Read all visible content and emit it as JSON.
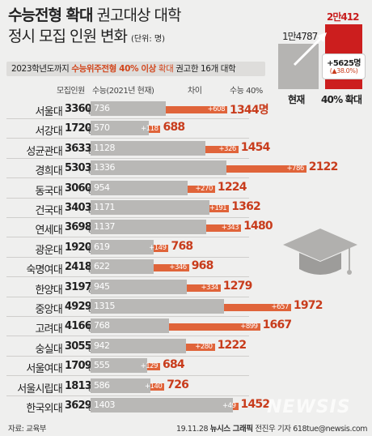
{
  "title": {
    "line1_bold": "수능전형 확대",
    "line1_light": "권고대상 대학",
    "line2": "정시 모집 인원 변화",
    "unit": "(단위: 명)"
  },
  "banner": {
    "part1": "2023학년도까지 ",
    "highlight": "수능위주전형 40% 이상",
    "part2": " 확대",
    "part3": " 권고한 16개 대학"
  },
  "headers": {
    "recruit": "모집인원",
    "current": "수능(2021년 현재)",
    "diff": "차이",
    "target": "수능 40%"
  },
  "unit_suffix": "명",
  "inset": {
    "current_value": "1만4787",
    "target_value": "2만412",
    "current_label": "현재",
    "target_label": "40% 확대",
    "increase": "+5625명",
    "increase_pct": "(▲38.0%)",
    "colors": {
      "current": "#b5b4b2",
      "target": "#cc1e1e"
    }
  },
  "chart_data": {
    "type": "bar",
    "title": "정시 모집 인원 변화",
    "series": [
      {
        "name": "수능(2021년 현재)",
        "values": [
          736,
          570,
          1128,
          1336,
          954,
          1171,
          1137,
          619,
          622,
          945,
          1315,
          768,
          942,
          555,
          586,
          1403
        ]
      },
      {
        "name": "수능 40%",
        "values": [
          1344,
          688,
          1454,
          2122,
          1224,
          1362,
          1480,
          768,
          968,
          1279,
          1972,
          1667,
          1222,
          684,
          726,
          1452
        ]
      }
    ],
    "rows": [
      {
        "univ": "서울대",
        "recruit": 3360,
        "current": 736,
        "diff": "+608",
        "target": 1344,
        "target_label": "1344명"
      },
      {
        "univ": "서강대",
        "recruit": 1720,
        "current": 570,
        "diff": "+118",
        "target": 688,
        "target_label": "688"
      },
      {
        "univ": "성균관대",
        "recruit": 3633,
        "current": 1128,
        "diff": "+326",
        "target": 1454,
        "target_label": "1454"
      },
      {
        "univ": "경희대",
        "recruit": 5303,
        "current": 1336,
        "diff": "+786",
        "target": 2122,
        "target_label": "2122"
      },
      {
        "univ": "동국대",
        "recruit": 3060,
        "current": 954,
        "diff": "+270",
        "target": 1224,
        "target_label": "1224"
      },
      {
        "univ": "건국대",
        "recruit": 3403,
        "current": 1171,
        "diff": "+191",
        "target": 1362,
        "target_label": "1362"
      },
      {
        "univ": "연세대",
        "recruit": 3698,
        "current": 1137,
        "diff": "+343",
        "target": 1480,
        "target_label": "1480"
      },
      {
        "univ": "광운대",
        "recruit": 1920,
        "current": 619,
        "diff": "+149",
        "target": 768,
        "target_label": "768"
      },
      {
        "univ": "숙명여대",
        "recruit": 2418,
        "current": 622,
        "diff": "+346",
        "target": 968,
        "target_label": "968"
      },
      {
        "univ": "한양대",
        "recruit": 3197,
        "current": 945,
        "diff": "+334",
        "target": 1279,
        "target_label": "1279"
      },
      {
        "univ": "중앙대",
        "recruit": 4929,
        "current": 1315,
        "diff": "+657",
        "target": 1972,
        "target_label": "1972"
      },
      {
        "univ": "고려대",
        "recruit": 4166,
        "current": 768,
        "diff": "+899",
        "target": 1667,
        "target_label": "1667"
      },
      {
        "univ": "숭실대",
        "recruit": 3055,
        "current": 942,
        "diff": "+280",
        "target": 1222,
        "target_label": "1222"
      },
      {
        "univ": "서울여대",
        "recruit": 1709,
        "current": 555,
        "diff": "+129",
        "target": 684,
        "target_label": "684"
      },
      {
        "univ": "서울시립대",
        "recruit": 1813,
        "current": 586,
        "diff": "+140",
        "target": 726,
        "target_label": "726"
      },
      {
        "univ": "한국외대",
        "recruit": 3629,
        "current": 1403,
        "diff": "+49",
        "target": 1452,
        "target_label": "1452"
      }
    ],
    "colors": {
      "current_bar": "#b9b8b6",
      "increase_bar": "#e0643a",
      "target_text": "#c83c1c"
    }
  },
  "footer": {
    "source": "자료: 교육부",
    "credit_date": "19.11.28",
    "credit_brand": "뉴시스 그래픽",
    "credit_author": "전진우 기자 618tue@newsis.com"
  },
  "watermark": "NEWSIS"
}
